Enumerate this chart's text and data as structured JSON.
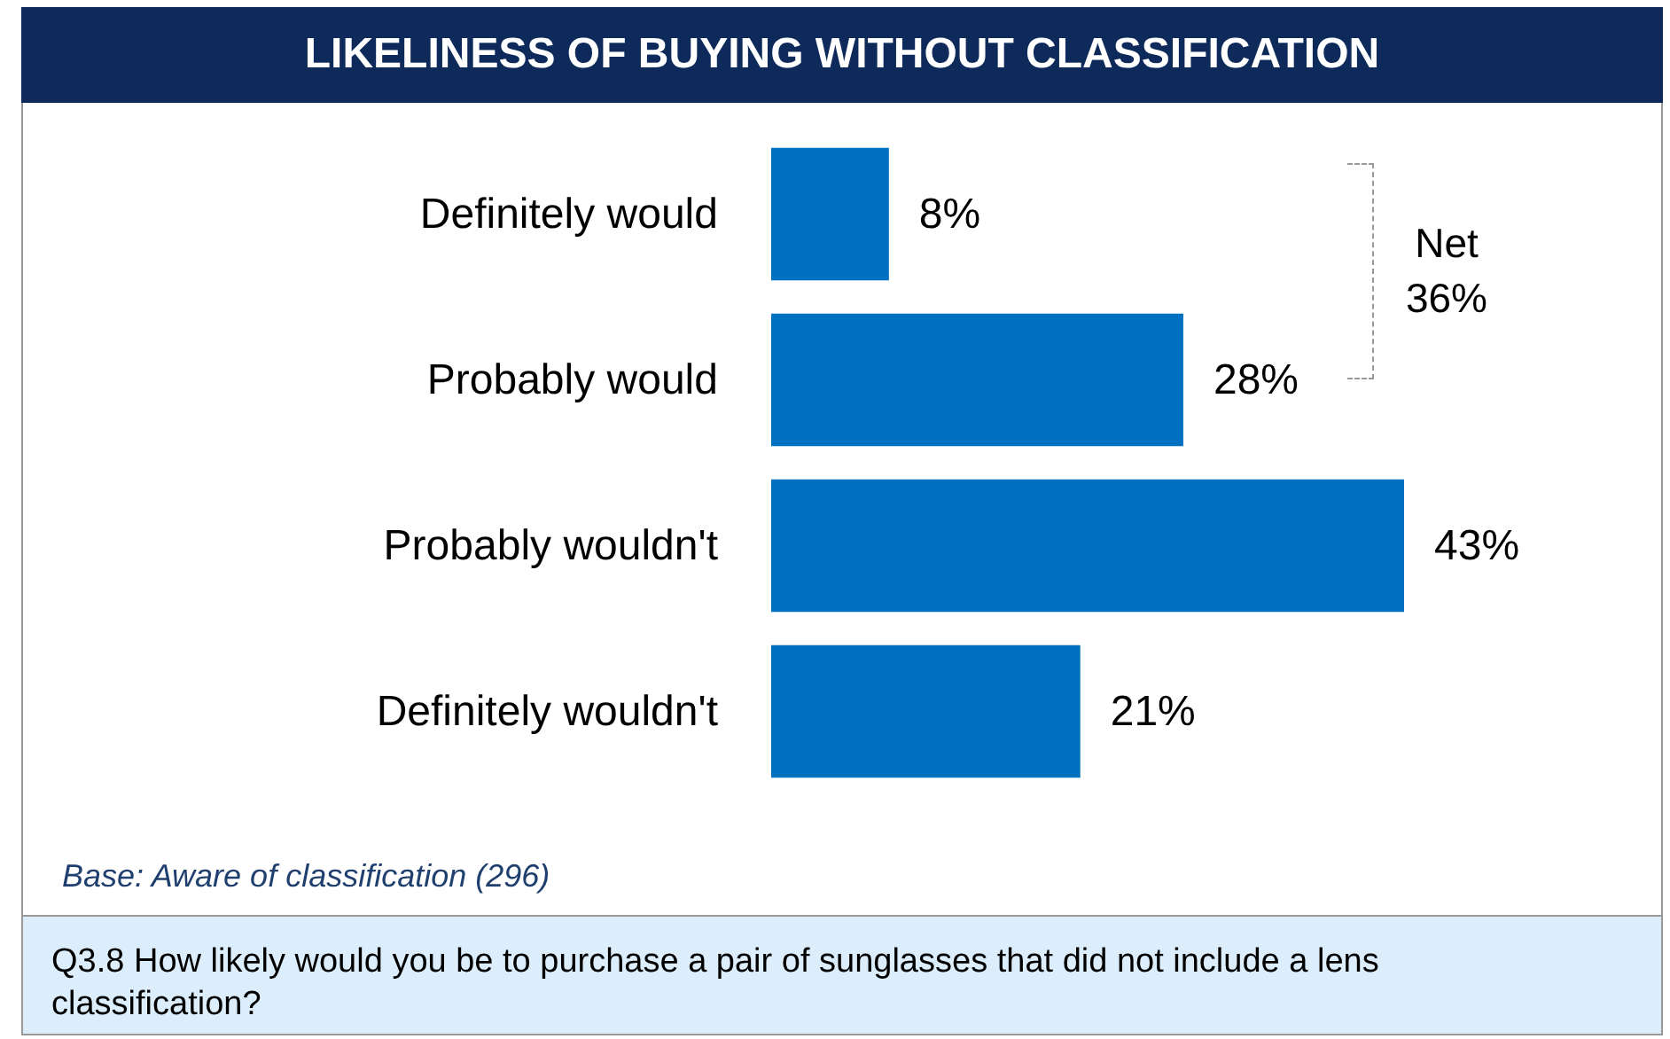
{
  "chart_data": {
    "type": "bar",
    "orientation": "horizontal",
    "title": "LIKELINESS OF BUYING WITHOUT CLASSIFICATION",
    "categories": [
      "Definitely would",
      "Probably would",
      "Probably wouldn't",
      "Definitely wouldn't"
    ],
    "values": [
      8,
      28,
      43,
      21
    ],
    "value_labels": [
      "8%",
      "28%",
      "43%",
      "21%"
    ],
    "color": "#0070c0",
    "annotations": [
      "Net 36%",
      "Base: Aware of classification (296)",
      "Q3.8 How likely would you be to purchase a pair of sunglasses that did not include a lens classification?"
    ]
  }
}
